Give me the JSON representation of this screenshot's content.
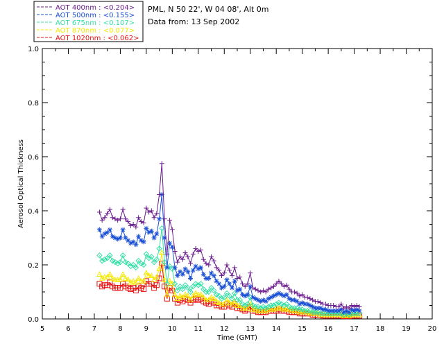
{
  "header": {
    "location": "PML, N 50 22', W 04 08', Alt 0m",
    "data_from": "Data from: 13 Sep 2002"
  },
  "chart_data": {
    "type": "line",
    "xlabel": "Time (GMT)",
    "ylabel": "Aerosol Optical Thickness",
    "xlim": [
      5,
      20
    ],
    "ylim": [
      0,
      1.0
    ],
    "xticks": [
      "5",
      "6",
      "7",
      "8",
      "9",
      "10",
      "11",
      "12",
      "13",
      "14",
      "15",
      "16",
      "17",
      "18",
      "19",
      "20"
    ],
    "yticks": [
      "0.0",
      "0.2",
      "0.4",
      "0.6",
      "0.8",
      "1.0"
    ],
    "grid": false,
    "legend_position": "top-left, outside plot",
    "x": [
      7.2,
      7.3,
      7.4,
      7.5,
      7.6,
      7.7,
      7.8,
      7.9,
      8.0,
      8.1,
      8.2,
      8.3,
      8.4,
      8.5,
      8.6,
      8.7,
      8.8,
      8.9,
      9.0,
      9.1,
      9.2,
      9.3,
      9.4,
      9.5,
      9.6,
      9.7,
      9.8,
      9.9,
      10.0,
      10.1,
      10.2,
      10.3,
      10.4,
      10.5,
      10.6,
      10.7,
      10.8,
      10.9,
      11.0,
      11.1,
      11.2,
      11.3,
      11.4,
      11.5,
      11.6,
      11.7,
      11.8,
      11.9,
      12.0,
      12.1,
      12.2,
      12.3,
      12.4,
      12.5,
      12.6,
      12.7,
      12.8,
      12.9,
      13.0,
      13.1,
      13.2,
      13.3,
      13.4,
      13.5,
      13.6,
      13.7,
      13.8,
      13.9,
      14.0,
      14.1,
      14.2,
      14.3,
      14.4,
      14.5,
      14.6,
      14.7,
      14.8,
      14.9,
      15.0,
      15.1,
      15.2,
      15.3,
      15.4,
      15.5,
      15.6,
      15.7,
      15.8,
      15.9,
      16.0,
      16.1,
      16.2,
      16.3,
      16.4,
      16.5,
      16.6,
      16.7,
      16.8,
      16.9,
      17.0,
      17.1,
      17.2
    ],
    "series": [
      {
        "name": "AOT  400nm : <0.204>",
        "color": "#6b1c8e",
        "marker": "plus",
        "values": [
          0.395,
          0.365,
          0.375,
          0.39,
          0.405,
          0.375,
          0.37,
          0.365,
          0.37,
          0.405,
          0.37,
          0.36,
          0.345,
          0.35,
          0.34,
          0.375,
          0.36,
          0.355,
          0.41,
          0.395,
          0.4,
          0.375,
          0.39,
          0.46,
          0.575,
          0.37,
          0.24,
          0.365,
          0.33,
          0.25,
          0.21,
          0.23,
          0.22,
          0.245,
          0.23,
          0.205,
          0.24,
          0.26,
          0.25,
          0.255,
          0.22,
          0.205,
          0.2,
          0.23,
          0.215,
          0.19,
          0.18,
          0.16,
          0.17,
          0.2,
          0.18,
          0.16,
          0.19,
          0.15,
          0.155,
          0.13,
          0.12,
          0.13,
          0.17,
          0.115,
          0.11,
          0.105,
          0.1,
          0.105,
          0.1,
          0.11,
          0.115,
          0.12,
          0.13,
          0.14,
          0.13,
          0.12,
          0.125,
          0.11,
          0.1,
          0.1,
          0.095,
          0.085,
          0.09,
          0.08,
          0.08,
          0.075,
          0.07,
          0.065,
          0.065,
          0.06,
          0.055,
          0.055,
          0.05,
          0.05,
          0.05,
          0.045,
          0.045,
          0.055,
          0.04,
          0.045,
          0.04,
          0.05,
          0.045,
          0.05,
          0.045
        ]
      },
      {
        "name": "AOT  500nm : <0.155>",
        "color": "#1a4fd6",
        "marker": "star",
        "values": [
          0.33,
          0.305,
          0.315,
          0.32,
          0.33,
          0.305,
          0.3,
          0.295,
          0.3,
          0.33,
          0.3,
          0.29,
          0.28,
          0.285,
          0.275,
          0.305,
          0.29,
          0.285,
          0.335,
          0.32,
          0.325,
          0.3,
          0.315,
          0.37,
          0.46,
          0.3,
          0.19,
          0.28,
          0.265,
          0.19,
          0.16,
          0.175,
          0.165,
          0.185,
          0.175,
          0.15,
          0.18,
          0.195,
          0.185,
          0.19,
          0.165,
          0.15,
          0.15,
          0.17,
          0.16,
          0.14,
          0.13,
          0.115,
          0.12,
          0.145,
          0.13,
          0.115,
          0.14,
          0.105,
          0.11,
          0.09,
          0.085,
          0.09,
          0.12,
          0.08,
          0.075,
          0.07,
          0.065,
          0.07,
          0.065,
          0.075,
          0.08,
          0.085,
          0.09,
          0.095,
          0.09,
          0.085,
          0.09,
          0.075,
          0.07,
          0.07,
          0.065,
          0.055,
          0.06,
          0.055,
          0.055,
          0.05,
          0.045,
          0.04,
          0.04,
          0.04,
          0.035,
          0.035,
          0.03,
          0.03,
          0.03,
          0.03,
          0.03,
          0.035,
          0.025,
          0.03,
          0.025,
          0.035,
          0.03,
          0.035,
          0.03
        ]
      },
      {
        "name": "AOT  675nm : <0.107>",
        "color": "#33e0a6",
        "marker": "diamond",
        "values": [
          0.235,
          0.215,
          0.22,
          0.225,
          0.235,
          0.215,
          0.21,
          0.205,
          0.21,
          0.235,
          0.21,
          0.205,
          0.195,
          0.2,
          0.19,
          0.215,
          0.205,
          0.2,
          0.24,
          0.225,
          0.23,
          0.21,
          0.22,
          0.26,
          0.335,
          0.21,
          0.13,
          0.195,
          0.185,
          0.13,
          0.105,
          0.12,
          0.11,
          0.125,
          0.115,
          0.1,
          0.12,
          0.13,
          0.125,
          0.13,
          0.11,
          0.1,
          0.1,
          0.115,
          0.105,
          0.09,
          0.085,
          0.075,
          0.08,
          0.095,
          0.085,
          0.075,
          0.095,
          0.07,
          0.07,
          0.055,
          0.05,
          0.055,
          0.08,
          0.05,
          0.045,
          0.045,
          0.04,
          0.045,
          0.04,
          0.045,
          0.05,
          0.05,
          0.055,
          0.06,
          0.055,
          0.05,
          0.055,
          0.045,
          0.04,
          0.04,
          0.04,
          0.035,
          0.035,
          0.03,
          0.03,
          0.03,
          0.025,
          0.025,
          0.025,
          0.02,
          0.02,
          0.02,
          0.02,
          0.02,
          0.02,
          0.02,
          0.02,
          0.02,
          0.015,
          0.02,
          0.015,
          0.02,
          0.02,
          0.02,
          0.02
        ]
      },
      {
        "name": "AOT  870nm : <0.077>",
        "color": "#f5e800",
        "marker": "triangle",
        "values": [
          0.165,
          0.15,
          0.155,
          0.155,
          0.165,
          0.15,
          0.145,
          0.145,
          0.145,
          0.165,
          0.15,
          0.145,
          0.135,
          0.14,
          0.135,
          0.15,
          0.14,
          0.14,
          0.17,
          0.16,
          0.16,
          0.145,
          0.155,
          0.185,
          0.245,
          0.145,
          0.09,
          0.14,
          0.13,
          0.09,
          0.075,
          0.085,
          0.08,
          0.09,
          0.085,
          0.07,
          0.085,
          0.095,
          0.09,
          0.09,
          0.08,
          0.07,
          0.07,
          0.08,
          0.075,
          0.065,
          0.06,
          0.055,
          0.055,
          0.07,
          0.06,
          0.055,
          0.065,
          0.05,
          0.05,
          0.04,
          0.04,
          0.04,
          0.055,
          0.035,
          0.035,
          0.03,
          0.03,
          0.03,
          0.03,
          0.035,
          0.035,
          0.035,
          0.04,
          0.04,
          0.04,
          0.035,
          0.04,
          0.035,
          0.03,
          0.03,
          0.03,
          0.025,
          0.025,
          0.025,
          0.025,
          0.02,
          0.02,
          0.02,
          0.02,
          0.015,
          0.015,
          0.015,
          0.015,
          0.015,
          0.015,
          0.015,
          0.015,
          0.015,
          0.012,
          0.015,
          0.012,
          0.015,
          0.015,
          0.015,
          0.015
        ]
      },
      {
        "name": "AOT 1020nm : <0.062>",
        "color": "#e81010",
        "marker": "square",
        "values": [
          0.13,
          0.12,
          0.125,
          0.125,
          0.135,
          0.12,
          0.115,
          0.115,
          0.115,
          0.13,
          0.12,
          0.115,
          0.11,
          0.115,
          0.105,
          0.12,
          0.115,
          0.11,
          0.14,
          0.13,
          0.13,
          0.115,
          0.125,
          0.15,
          0.205,
          0.12,
          0.075,
          0.115,
          0.105,
          0.075,
          0.06,
          0.07,
          0.065,
          0.075,
          0.07,
          0.06,
          0.07,
          0.075,
          0.07,
          0.075,
          0.065,
          0.06,
          0.055,
          0.065,
          0.06,
          0.05,
          0.05,
          0.045,
          0.045,
          0.055,
          0.05,
          0.045,
          0.055,
          0.04,
          0.04,
          0.035,
          0.03,
          0.035,
          0.045,
          0.03,
          0.03,
          0.025,
          0.025,
          0.025,
          0.025,
          0.03,
          0.03,
          0.03,
          0.03,
          0.035,
          0.03,
          0.03,
          0.03,
          0.025,
          0.025,
          0.025,
          0.025,
          0.02,
          0.02,
          0.02,
          0.02,
          0.02,
          0.015,
          0.015,
          0.015,
          0.015,
          0.012,
          0.012,
          0.012,
          0.012,
          0.012,
          0.012,
          0.012,
          0.012,
          0.01,
          0.012,
          0.01,
          0.012,
          0.012,
          0.012,
          0.012
        ]
      }
    ]
  }
}
